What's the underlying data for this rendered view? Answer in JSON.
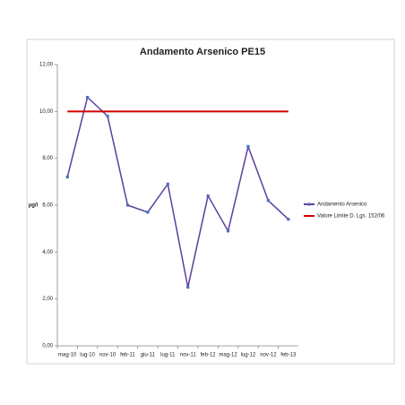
{
  "chart_data": {
    "type": "line",
    "title": "Andamento Arsenico PE15",
    "y_label": "µg/l",
    "categories": [
      "mag-10",
      "lug-10",
      "nov-10",
      "feb-11",
      "giu-11",
      "lug-11",
      "nov-11",
      "feb-12",
      "mag-12",
      "lug-12",
      "nov-12",
      "feb-13"
    ],
    "series": [
      {
        "name": "Andamento Arsenico",
        "color": "#5b3fa0",
        "marker_color": "#4a6fc0",
        "markers": true,
        "values": [
          7.2,
          10.6,
          9.8,
          6.0,
          5.7,
          6.9,
          2.5,
          6.4,
          4.9,
          8.5,
          6.2,
          5.4
        ]
      },
      {
        "name": "Valore Limite D. Lgs. 152/06",
        "color": "#d40000",
        "markers": false,
        "values": [
          10,
          10,
          10,
          10,
          10,
          10,
          10,
          10,
          10,
          10,
          10,
          10
        ]
      }
    ],
    "ylim": [
      0,
      12
    ],
    "yticks": [
      {
        "value": 0,
        "label": "0,00"
      },
      {
        "value": 2,
        "label": "2,00"
      },
      {
        "value": 4,
        "label": "4,00"
      },
      {
        "value": 6,
        "label": "6,00"
      },
      {
        "value": 8,
        "label": "8,00"
      },
      {
        "value": 10,
        "label": "10,00"
      },
      {
        "value": 12,
        "label": "12,00"
      }
    ],
    "legend": "right"
  }
}
